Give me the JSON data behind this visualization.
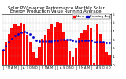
{
  "title": "Solar PV/Inverter Performance Monthly Solar Energy Production Value Running Average",
  "bar_color": "#ff0000",
  "avg_color": "#0000cd",
  "background_color": "#ffffff",
  "grid_color": "#999999",
  "values": [
    180,
    270,
    370,
    430,
    490,
    460,
    500,
    480,
    360,
    270,
    150,
    80,
    210,
    310,
    360,
    420,
    480,
    450,
    510,
    500,
    390,
    300,
    170,
    95,
    195,
    315,
    375,
    415,
    470,
    445,
    18,
    475,
    365,
    275,
    150,
    125
  ],
  "running_avg": [
    180,
    225,
    273,
    313,
    348,
    367,
    386,
    394,
    386,
    362,
    325,
    287,
    279,
    278,
    277,
    280,
    284,
    286,
    294,
    302,
    303,
    303,
    298,
    288,
    283,
    285,
    287,
    289,
    291,
    291,
    268,
    272,
    271,
    269,
    264,
    260
  ],
  "ylim": [
    0,
    600
  ],
  "ytick_vals": [
    0,
    100,
    200,
    300,
    400,
    500,
    600
  ],
  "ytick_labels": [
    "0",
    "1.",
    "2.",
    "3.",
    "4.",
    "5.",
    "6."
  ],
  "title_fontsize": 4.0,
  "tick_fontsize": 3.0,
  "legend_fontsize": 3.0
}
